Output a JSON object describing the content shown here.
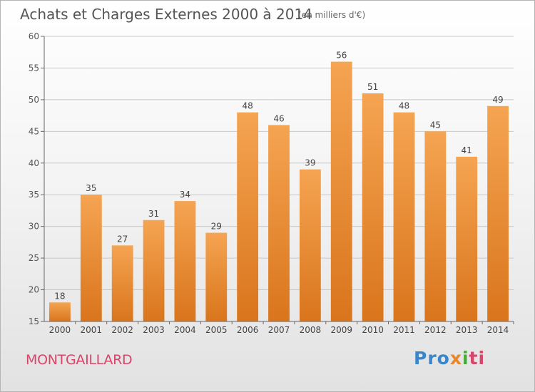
{
  "header": {
    "title": "Achats et Charges Externes 2000 à 2014",
    "subtitle": "(en milliers d'€)"
  },
  "footer": {
    "commune": "MONTGAILLARD",
    "brand_parts": [
      "Pro",
      "x",
      "i",
      "ti"
    ]
  },
  "colors": {
    "bar_top": "#f5a452",
    "bar_bottom": "#d9751c",
    "axis": "#666666",
    "grid": "#c8c8c8"
  },
  "chart_data": {
    "type": "bar",
    "title": "Achats et Charges Externes 2000 à 2014",
    "xlabel": "",
    "ylabel": "",
    "ylim": [
      15,
      60
    ],
    "yticks": [
      15,
      20,
      25,
      30,
      35,
      40,
      45,
      50,
      55,
      60
    ],
    "grid": true,
    "categories": [
      "2000",
      "2001",
      "2002",
      "2003",
      "2004",
      "2005",
      "2006",
      "2007",
      "2008",
      "2009",
      "2010",
      "2011",
      "2012",
      "2013",
      "2014"
    ],
    "values": [
      18,
      35,
      27,
      31,
      34,
      29,
      48,
      46,
      39,
      56,
      51,
      48,
      45,
      41,
      49
    ]
  }
}
